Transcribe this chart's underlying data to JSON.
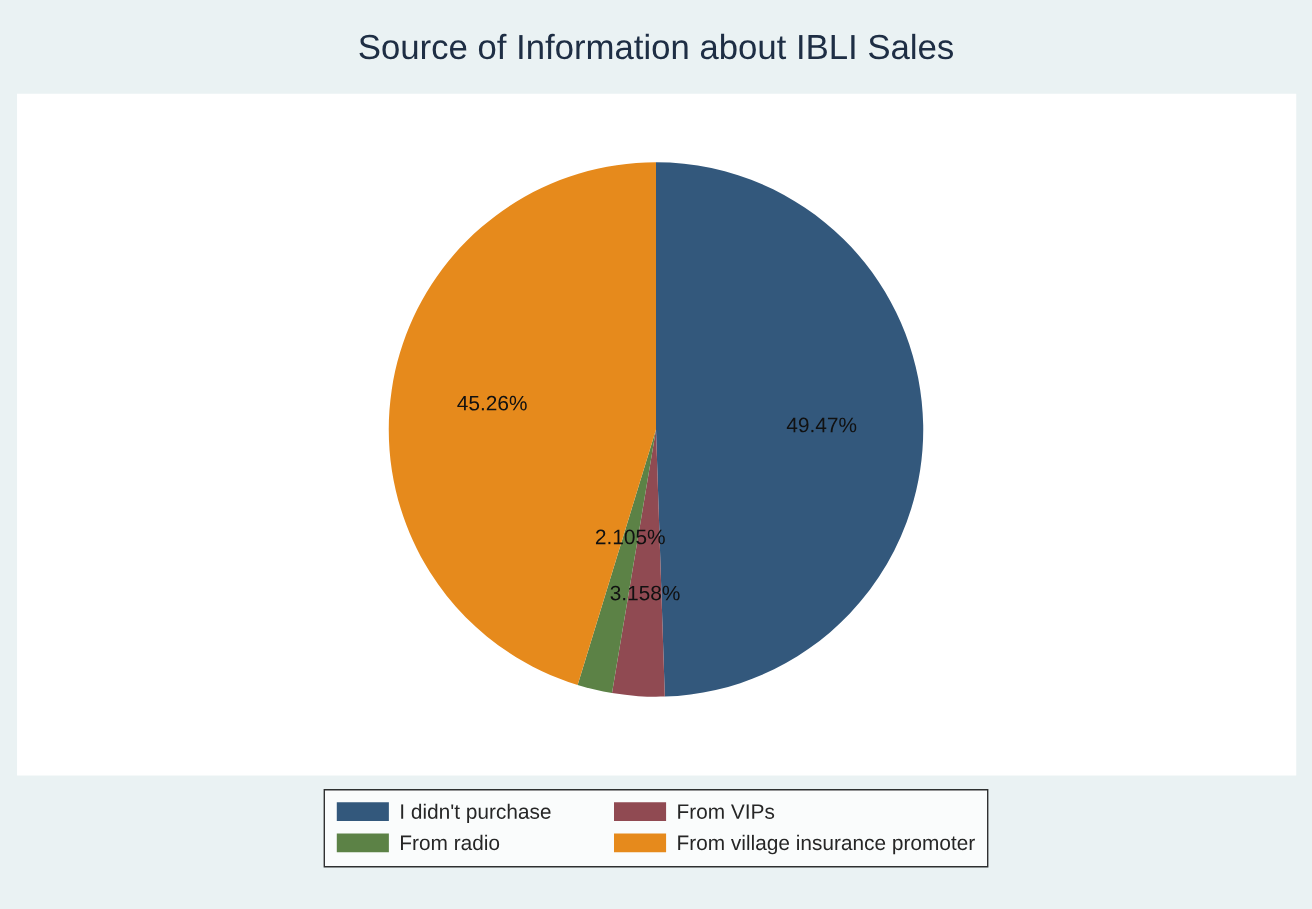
{
  "chart_data": {
    "type": "pie",
    "title": "Source of Information about IBLI Sales",
    "categories": [
      "I didn't purchase",
      "From VIPs",
      "From radio",
      "From village insurance promoter"
    ],
    "values": [
      49.47,
      3.158,
      2.105,
      45.26
    ],
    "value_labels": [
      "49.47%",
      "3.158%",
      "2.105%",
      "45.26%"
    ],
    "colors": [
      "#33587c",
      "#904a52",
      "#5c8246",
      "#e68a1c"
    ],
    "legend": "bottom"
  }
}
